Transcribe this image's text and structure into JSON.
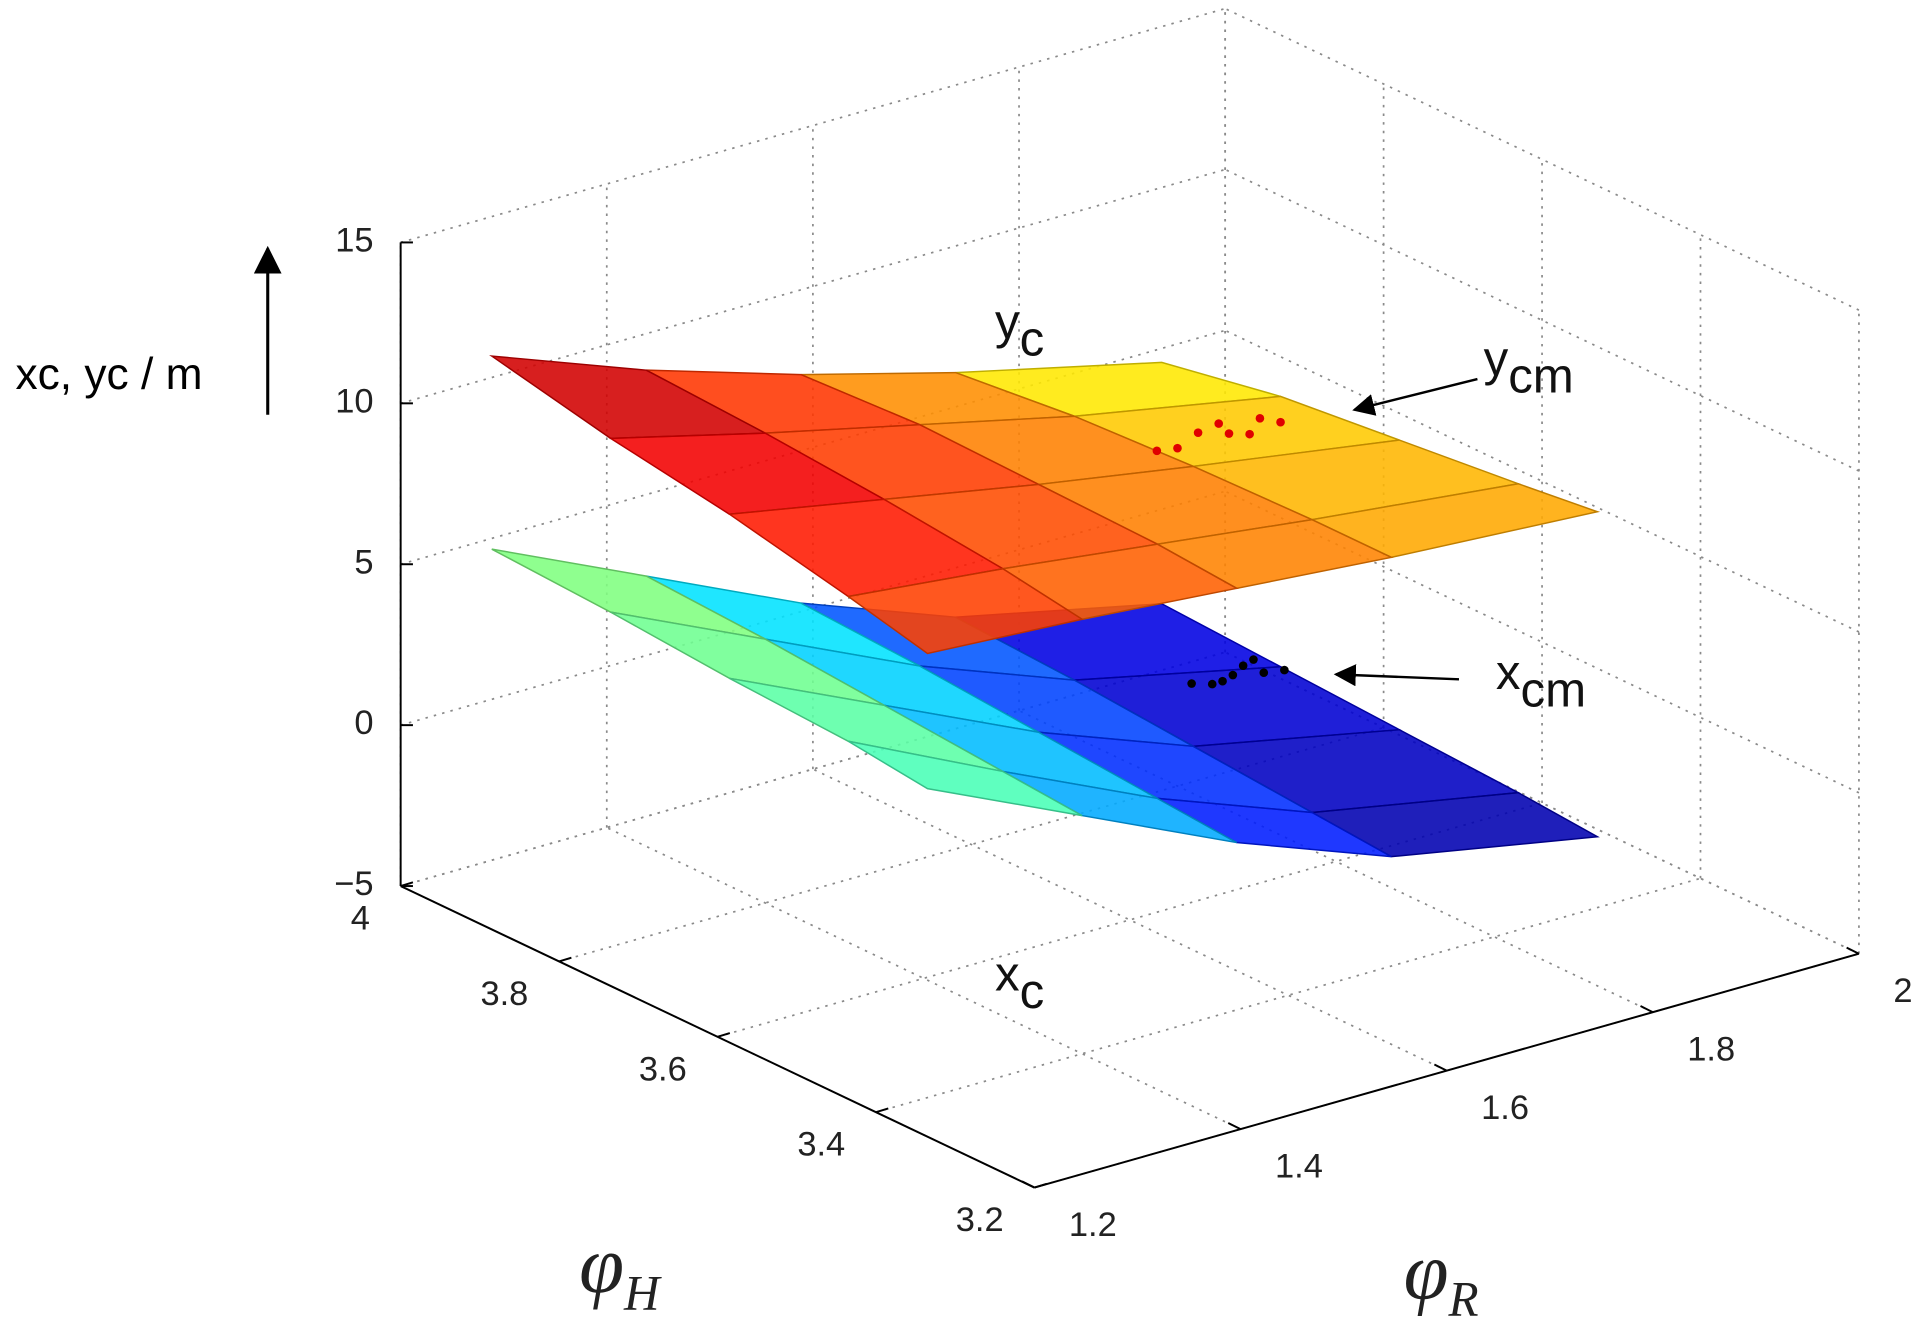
{
  "chart_data": {
    "type": "surface3d",
    "z_label": "xc, yc / m",
    "x_label": {
      "symbol": "φ",
      "subscript": "H"
    },
    "y_label": {
      "symbol": "φ",
      "subscript": "R"
    },
    "xlim": [
      3.2,
      4
    ],
    "xticks": [
      3.2,
      3.4,
      3.6,
      3.8,
      4
    ],
    "ylim": [
      1.2,
      2
    ],
    "yticks": [
      1.2,
      1.4,
      1.6,
      1.8,
      2
    ],
    "zlim": [
      -5,
      15
    ],
    "zticks": [
      {
        "value": -5,
        "label": "−5"
      },
      0,
      5,
      10,
      15
    ],
    "grid": true,
    "colormap": "jet",
    "surfaces": [
      {
        "label": {
          "symbol": "x",
          "subscript": "c"
        },
        "x": [
          3.95,
          3.8,
          3.65,
          3.5,
          3.4
        ],
        "y": [
          1.25,
          1.4,
          1.55,
          1.7,
          1.9
        ],
        "z": [
          [
            5.6,
            3.4,
            1.2,
            -0.6,
            -2.0
          ],
          [
            5.4,
            3.2,
            1.0,
            -0.8,
            -2.2
          ],
          [
            5.1,
            2.9,
            0.7,
            -1.1,
            -2.4
          ],
          [
            4.9,
            2.6,
            0.4,
            -1.4,
            -2.6
          ],
          [
            4.6,
            2.4,
            0.2,
            -1.6,
            -2.8
          ]
        ]
      },
      {
        "label": {
          "symbol": "y",
          "subscript": "c"
        },
        "x": [
          3.95,
          3.8,
          3.65,
          3.5,
          3.4
        ],
        "y": [
          1.25,
          1.4,
          1.55,
          1.7,
          1.9
        ],
        "z": [
          [
            11.6,
            9.8,
            8.3,
            7.0,
            5.5
          ],
          [
            10.8,
            9.6,
            8.5,
            7.4,
            6.2
          ],
          [
            10.2,
            9.3,
            8.4,
            7.6,
            6.6
          ],
          [
            9.4,
            8.9,
            8.3,
            7.7,
            7.0
          ],
          [
            8.8,
            8.5,
            8.1,
            7.7,
            7.3
          ]
        ]
      }
    ],
    "scatter": [
      {
        "label": {
          "symbol": "x",
          "subscript": "cm"
        },
        "color": "#000000",
        "x": [
          3.6,
          3.6,
          3.6,
          3.6,
          3.6,
          3.6,
          3.6,
          3.6
        ],
        "y": [
          1.66,
          1.69,
          1.71,
          1.73,
          1.75,
          1.7,
          1.72,
          1.68
        ],
        "z": [
          1.8,
          1.6,
          1.9,
          1.5,
          1.4,
          1.7,
          2.0,
          1.6
        ]
      },
      {
        "label": {
          "symbol": "y",
          "subscript": "cm"
        },
        "color": "#e00000",
        "x": [
          3.8,
          3.8,
          3.8,
          3.8,
          3.8,
          3.8,
          3.8,
          3.8
        ],
        "y": [
          1.78,
          1.82,
          1.85,
          1.88,
          1.9,
          1.84,
          1.8,
          1.87
        ],
        "z": [
          5.6,
          5.8,
          5.5,
          5.7,
          5.4,
          5.9,
          5.5,
          5.3
        ]
      }
    ]
  }
}
